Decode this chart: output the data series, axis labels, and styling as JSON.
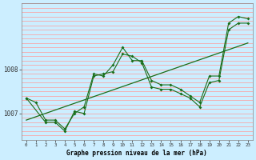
{
  "title": "Graphe pression niveau de la mer (hPa)",
  "background_color": "#cceeff",
  "grid_color": "#ff9999",
  "line_color": "#1a6e1a",
  "xlim": [
    -0.5,
    23.5
  ],
  "ylim": [
    1006.4,
    1009.4
  ],
  "yticks": [
    1007,
    1008
  ],
  "xticks": [
    0,
    1,
    2,
    3,
    4,
    5,
    6,
    7,
    8,
    9,
    10,
    11,
    12,
    13,
    14,
    15,
    16,
    17,
    18,
    19,
    20,
    21,
    22,
    23
  ],
  "series1_x": [
    0,
    1,
    2,
    3,
    4,
    5,
    6,
    7,
    8,
    9,
    10,
    11,
    12,
    13,
    14,
    15,
    16,
    17,
    18,
    19,
    20,
    21,
    22,
    23
  ],
  "series1_y": [
    1007.35,
    1007.25,
    1006.85,
    1006.85,
    1006.65,
    1007.0,
    1007.15,
    1007.9,
    1007.85,
    1008.1,
    1008.5,
    1008.2,
    1008.2,
    1007.75,
    1007.65,
    1007.65,
    1007.55,
    1007.4,
    1007.25,
    1007.85,
    1007.85,
    1009.05,
    1009.2,
    1009.15
  ],
  "series2_x": [
    0,
    2,
    3,
    4,
    5,
    6,
    7,
    8,
    9,
    10,
    11,
    12,
    13,
    14,
    15,
    16,
    17,
    18,
    19,
    20,
    21,
    22,
    23
  ],
  "series2_y": [
    1007.35,
    1006.8,
    1006.8,
    1006.6,
    1007.05,
    1007.0,
    1007.85,
    1007.9,
    1007.95,
    1008.35,
    1008.3,
    1008.15,
    1007.6,
    1007.55,
    1007.55,
    1007.45,
    1007.35,
    1007.15,
    1007.7,
    1007.75,
    1008.9,
    1009.05,
    1009.05
  ],
  "trend_x": [
    0,
    23
  ],
  "trend_y": [
    1006.85,
    1008.6
  ]
}
